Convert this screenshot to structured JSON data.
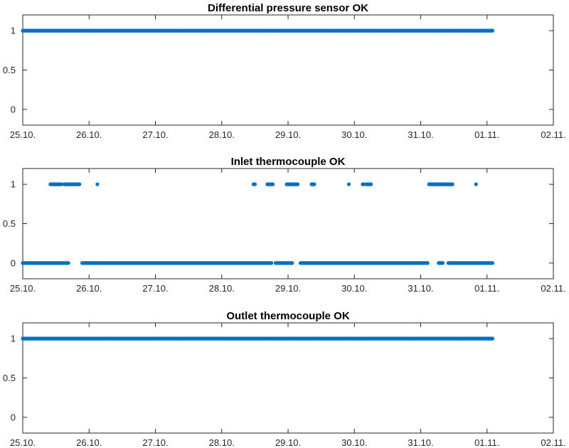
{
  "chart_data": [
    {
      "type": "scatter",
      "title": "Differential pressure sensor OK",
      "xlabel": "",
      "ylabel": "",
      "xlim": [
        "25.10.",
        "02.11."
      ],
      "ylim": [
        -0.2,
        1.2
      ],
      "x_ticks": [
        "25.10.",
        "26.10.",
        "27.10.",
        "28.10.",
        "29.10.",
        "30.10.",
        "31.10.",
        "01.11.",
        "02.11."
      ],
      "y_ticks": [
        "0",
        "0.5",
        "1"
      ],
      "grid": false,
      "marker_color": "#0072bd",
      "series": [
        {
          "value": 1,
          "x_ranges": [
            [
              "25.10. 00:00",
              "01.11. 02:00"
            ]
          ]
        }
      ]
    },
    {
      "type": "scatter",
      "title": "Inlet thermocouple OK",
      "xlabel": "",
      "ylabel": "",
      "xlim": [
        "25.10.",
        "02.11."
      ],
      "ylim": [
        -0.2,
        1.2
      ],
      "x_ticks": [
        "25.10.",
        "26.10.",
        "27.10.",
        "28.10.",
        "29.10.",
        "30.10.",
        "31.10.",
        "01.11.",
        "02.11."
      ],
      "y_ticks": [
        "0",
        "0.5",
        "1"
      ],
      "grid": false,
      "marker_color": "#0072bd",
      "series": [
        {
          "value": 1,
          "x_ranges": [
            [
              "25.10. 10:00",
              "25.10. 14:00"
            ],
            [
              "25.10. 15:00",
              "25.10. 20:30"
            ],
            [
              "26.10. 03:00",
              "26.10. 03:00"
            ],
            [
              "28.10. 11:30",
              "28.10. 12:00"
            ],
            [
              "28.10. 16:30",
              "28.10. 18:30"
            ],
            [
              "28.10. 23:30",
              "29.10. 03:30"
            ],
            [
              "29.10. 08:30",
              "29.10. 09:30"
            ],
            [
              "29.10. 22:00",
              "29.10. 22:00"
            ],
            [
              "30.10. 03:00",
              "30.10. 03:30"
            ],
            [
              "30.10. 04:30",
              "30.10. 06:00"
            ],
            [
              "31.10. 03:00",
              "31.10. 11:30"
            ],
            [
              "31.10. 20:00",
              "31.10. 20:00"
            ]
          ]
        },
        {
          "value": 0,
          "x_ranges": [
            [
              "25.10. 00:00",
              "25.10. 15:00"
            ],
            [
              "25.10. 15:30",
              "25.10. 16:30"
            ],
            [
              "25.10. 21:30",
              "28.10. 16:00"
            ],
            [
              "28.10. 16:30",
              "28.10. 18:00"
            ],
            [
              "28.10. 19:30",
              "29.10. 01:30"
            ],
            [
              "29.10. 04:30",
              "31.10. 02:30"
            ],
            [
              "31.10. 06:30",
              "31.10. 08:00"
            ],
            [
              "31.10. 10:00",
              "01.11. 02:00"
            ]
          ]
        }
      ]
    },
    {
      "type": "scatter",
      "title": "Outlet thermocouple OK",
      "xlabel": "",
      "ylabel": "",
      "xlim": [
        "25.10.",
        "02.11."
      ],
      "ylim": [
        -0.2,
        1.2
      ],
      "x_ticks": [
        "25.10.",
        "26.10.",
        "27.10.",
        "28.10.",
        "29.10.",
        "30.10.",
        "31.10.",
        "01.11.",
        "02.11."
      ],
      "y_ticks": [
        "0",
        "0.5",
        "1"
      ],
      "grid": false,
      "marker_color": "#0072bd",
      "series": [
        {
          "value": 1,
          "x_ranges": [
            [
              "25.10. 00:00",
              "01.11. 02:00"
            ]
          ]
        }
      ]
    }
  ]
}
